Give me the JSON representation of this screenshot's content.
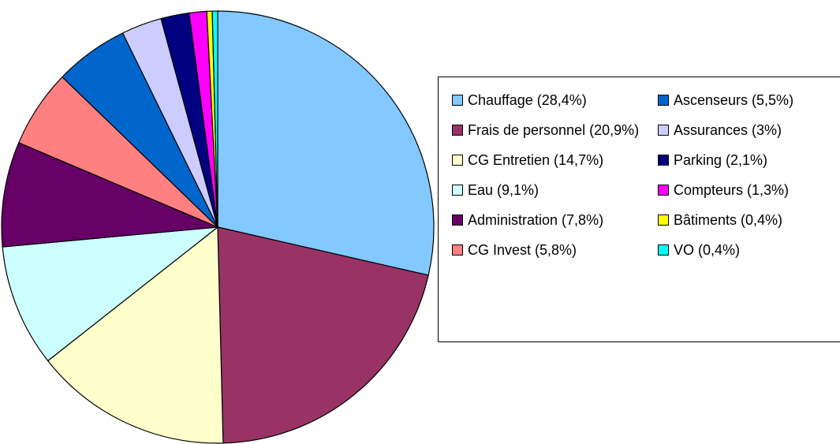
{
  "chart_data": {
    "type": "pie",
    "categories": [
      "Chauffage (28,4%)",
      "Frais de personnel (20,9%)",
      "CG Entretien (14,7%)",
      "Eau (9,1%)",
      "Administration (7,8%)",
      "CG Invest (5,8%)",
      "Ascenseurs (5,5%)",
      "Assurances (3%)",
      "Parking (2,1%)",
      "Compteurs (1,3%)",
      "Bâtiments (0,4%)",
      "VO (0,4%)"
    ],
    "values": [
      28.4,
      20.9,
      14.7,
      9.1,
      7.8,
      5.8,
      5.5,
      3,
      2.1,
      1.3,
      0.4,
      0.4
    ],
    "colors": [
      "#83c8ff",
      "#993366",
      "#ffffcc",
      "#ccffff",
      "#660066",
      "#ff8080",
      "#0066cc",
      "#ccccff",
      "#000080",
      "#ff00ff",
      "#ffff00",
      "#00ffff"
    ],
    "legend": "right"
  }
}
